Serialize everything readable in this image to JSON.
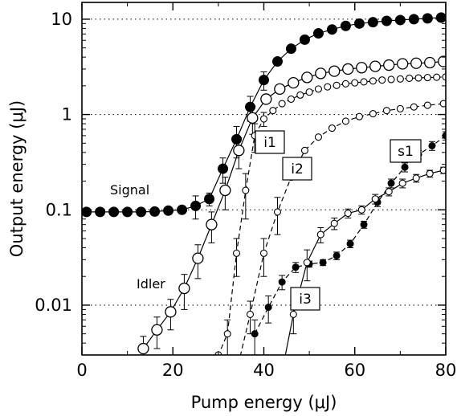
{
  "chart_data": {
    "type": "line",
    "xlabel": "Pump energy (μJ)",
    "ylabel": "Output energy (μJ)",
    "xlim": [
      0,
      80
    ],
    "ylim": [
      0.003,
      15
    ],
    "yscale": "log",
    "xticks": [
      "0",
      "20",
      "40",
      "60",
      "80"
    ],
    "yticks": [
      {
        "value": 0.01,
        "label": "0.01"
      },
      {
        "value": 0.1,
        "label": "0.1"
      },
      {
        "value": 1,
        "label": "1"
      },
      {
        "value": 10,
        "label": "10"
      }
    ],
    "grid": "horizontal dotted at 0.01, 0.1, 1, 10",
    "series": [
      {
        "name": "Signal",
        "marker": "filled-circle-large",
        "line": "solid",
        "x": [
          1,
          4,
          7,
          10,
          13,
          16,
          19,
          22,
          25,
          28,
          31,
          34,
          37,
          40,
          43,
          46,
          49,
          52,
          55,
          58,
          61,
          64,
          67,
          70,
          73,
          76,
          79
        ],
        "y": [
          0.095,
          0.095,
          0.095,
          0.095,
          0.095,
          0.096,
          0.098,
          0.1,
          0.11,
          0.13,
          0.27,
          0.55,
          1.2,
          2.3,
          3.6,
          4.9,
          6.1,
          7.1,
          7.8,
          8.5,
          9.0,
          9.3,
          9.6,
          9.8,
          10.0,
          10.2,
          10.4
        ],
        "err": [
          0,
          0,
          0,
          0,
          0,
          0,
          0,
          0,
          0.03,
          0.02,
          0.08,
          0.2,
          0.35,
          0.5,
          0,
          0,
          0,
          0,
          0,
          0,
          0,
          0,
          0,
          0,
          0,
          0,
          0
        ]
      },
      {
        "name": "Idler",
        "marker": "open-circle-large",
        "line": "solid",
        "x": [
          13.5,
          16.5,
          19.5,
          22.5,
          25.5,
          28.5,
          31.5,
          34.5,
          37.5,
          40.5,
          43.5,
          46.5,
          49.5,
          52.5,
          55.5,
          58.5,
          61.5,
          64.5,
          67.5,
          70.5,
          73.5,
          76.5,
          79.5
        ],
        "y": [
          0.0035,
          0.0055,
          0.0085,
          0.015,
          0.031,
          0.07,
          0.16,
          0.42,
          0.92,
          1.45,
          1.85,
          2.15,
          2.45,
          2.7,
          2.85,
          3.0,
          3.1,
          3.2,
          3.3,
          3.4,
          3.45,
          3.5,
          3.6
        ],
        "err": [
          0.0012,
          0.002,
          0.003,
          0.006,
          0.012,
          0.025,
          0.06,
          0.15,
          0.3,
          0,
          0,
          0,
          0,
          0,
          0,
          0,
          0,
          0,
          0,
          0,
          0,
          0,
          0
        ]
      },
      {
        "name": "i1",
        "marker": "open-circle-small",
        "line": "dashed",
        "x": [
          29,
          30,
          32,
          34,
          36,
          38,
          40,
          42,
          44,
          46,
          48,
          50,
          52,
          54,
          56,
          58,
          60,
          62,
          64,
          66,
          68,
          70,
          72,
          74,
          76,
          78,
          80
        ],
        "y": [
          0.002,
          0.003,
          0.005,
          0.035,
          0.16,
          0.6,
          0.9,
          1.1,
          1.3,
          1.45,
          1.6,
          1.72,
          1.85,
          1.95,
          2.02,
          2.1,
          2.15,
          2.2,
          2.25,
          2.3,
          2.33,
          2.36,
          2.4,
          2.42,
          2.44,
          2.46,
          2.48
        ],
        "err": [
          0,
          0,
          0.002,
          0.015,
          0.08,
          0.2,
          0.15,
          0,
          0,
          0,
          0,
          0,
          0,
          0,
          0,
          0,
          0,
          0,
          0,
          0,
          0,
          0,
          0,
          0,
          0,
          0,
          0
        ]
      },
      {
        "name": "i2",
        "marker": "open-circle-small",
        "line": "dashed",
        "x": [
          34,
          37,
          40,
          43,
          46,
          49,
          52,
          55,
          58,
          61,
          64,
          67,
          70,
          73,
          76,
          79.5
        ],
        "y": [
          0.002,
          0.008,
          0.035,
          0.095,
          0.22,
          0.42,
          0.58,
          0.72,
          0.85,
          0.95,
          1.02,
          1.1,
          1.15,
          1.2,
          1.25,
          1.3
        ],
        "err": [
          0,
          0.003,
          0.015,
          0.04,
          0,
          0,
          0,
          0,
          0,
          0,
          0,
          0,
          0,
          0,
          0,
          0
        ]
      },
      {
        "name": "s1",
        "marker": "filled-circle-small",
        "line": "dashed",
        "x": [
          38,
          41,
          44,
          47,
          50,
          53,
          56,
          59,
          62,
          65,
          68,
          71,
          74,
          77,
          80
        ],
        "y": [
          0.005,
          0.0095,
          0.0175,
          0.025,
          0.027,
          0.028,
          0.033,
          0.044,
          0.07,
          0.12,
          0.19,
          0.28,
          0.38,
          0.47,
          0.6
        ],
        "err": [
          0.002,
          0.003,
          0.003,
          0.003,
          0.002,
          0.002,
          0.003,
          0.004,
          0.006,
          0.012,
          0.02,
          0.03,
          0.04,
          0.05,
          0.06
        ]
      },
      {
        "name": "i3",
        "marker": "open-circle-small",
        "line": "solid",
        "x": [
          44,
          46.5,
          49.5,
          52.5,
          55.5,
          58.5,
          61.5,
          64.5,
          67.5,
          70.5,
          73.5,
          76.5,
          79.5
        ],
        "y": [
          0.002,
          0.008,
          0.028,
          0.055,
          0.072,
          0.092,
          0.1,
          0.13,
          0.155,
          0.19,
          0.215,
          0.24,
          0.26
        ],
        "err": [
          0,
          0.003,
          0.01,
          0.01,
          0.01,
          0.01,
          0.01,
          0.015,
          0.015,
          0.02,
          0.02,
          0.02,
          0.02
        ]
      }
    ],
    "annotations": [
      {
        "text": "Signal",
        "style": "plain"
      },
      {
        "text": "Idler",
        "style": "plain"
      },
      {
        "text": "i1",
        "style": "boxed"
      },
      {
        "text": "i2",
        "style": "boxed"
      },
      {
        "text": "i3",
        "style": "boxed"
      },
      {
        "text": "s1",
        "style": "boxed"
      }
    ]
  }
}
